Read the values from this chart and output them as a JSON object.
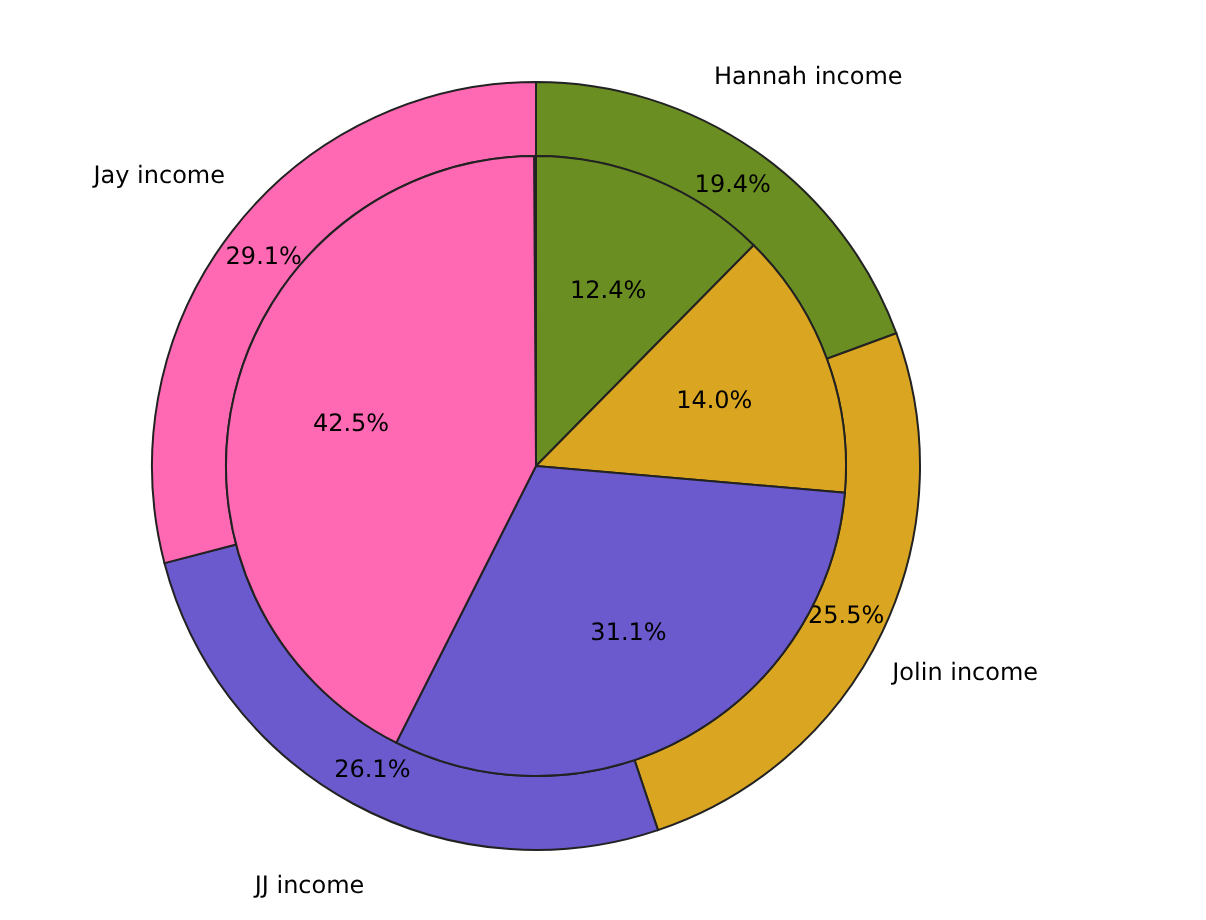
{
  "chart_data": {
    "type": "pie",
    "categories": [
      "Hannah income",
      "Jolin income",
      "JJ income",
      "Jay income"
    ],
    "colors": [
      "#6b8e23",
      "#daa520",
      "#6a5acd",
      "#ff69b4"
    ],
    "series": [
      {
        "values": [
          19.4,
          25.5,
          26.1,
          29.1
        ],
        "value_labels": [
          "19.4%",
          "25.5%",
          "26.1%",
          "29.1%"
        ]
      },
      {
        "values": [
          12.4,
          14.0,
          31.1,
          42.5
        ],
        "value_labels": [
          "12.4%",
          "14.0%",
          "31.1%",
          "42.5%"
        ]
      }
    ]
  }
}
